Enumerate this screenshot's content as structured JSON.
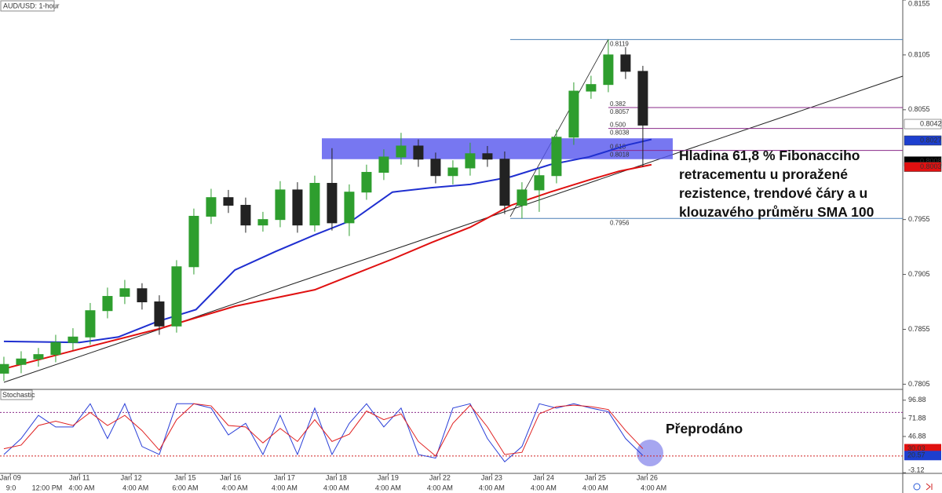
{
  "chart_data": [
    {
      "type": "candlestick",
      "title": "AUD/USD: 1-hour",
      "x": [
        0,
        8,
        16,
        24,
        32,
        40,
        48,
        56,
        64,
        72,
        80,
        88,
        96,
        104,
        112,
        120,
        128,
        136,
        144,
        152,
        160,
        168,
        176,
        184,
        192,
        200,
        208,
        216,
        224,
        232,
        240,
        248,
        256,
        264,
        272,
        280,
        288,
        296
      ],
      "open": [
        0.7815,
        0.7823,
        0.7828,
        0.7832,
        0.7843,
        0.7848,
        0.7872,
        0.7885,
        0.7892,
        0.788,
        0.7858,
        0.7912,
        0.7958,
        0.7975,
        0.7968,
        0.795,
        0.7955,
        0.7982,
        0.795,
        0.7988,
        0.7952,
        0.798,
        0.7998,
        0.8012,
        0.8022,
        0.801,
        0.7995,
        0.8002,
        0.8015,
        0.801,
        0.7968,
        0.7982,
        0.7995,
        0.803,
        0.8072,
        0.8078,
        0.8105,
        0.809
      ],
      "high": [
        0.783,
        0.7835,
        0.7838,
        0.785,
        0.7856,
        0.7879,
        0.7893,
        0.79,
        0.7897,
        0.7886,
        0.7918,
        0.7965,
        0.7983,
        0.7982,
        0.7975,
        0.7962,
        0.799,
        0.7989,
        0.7995,
        0.802,
        0.7987,
        0.8005,
        0.8019,
        0.8034,
        0.8028,
        0.8016,
        0.8009,
        0.8025,
        0.8022,
        0.8017,
        0.7989,
        0.8002,
        0.8037,
        0.808,
        0.8086,
        0.8119,
        0.8112,
        0.8095
      ],
      "low": [
        0.7808,
        0.7815,
        0.7821,
        0.7825,
        0.7836,
        0.7841,
        0.7865,
        0.7878,
        0.7873,
        0.785,
        0.7852,
        0.7905,
        0.7951,
        0.7961,
        0.7943,
        0.7944,
        0.7948,
        0.7943,
        0.7944,
        0.7945,
        0.794,
        0.7973,
        0.7991,
        0.8005,
        0.8003,
        0.7988,
        0.7987,
        0.7995,
        0.8003,
        0.796,
        0.7956,
        0.7962,
        0.7988,
        0.8023,
        0.8065,
        0.8071,
        0.8083,
        0.8003
      ],
      "close": [
        0.7823,
        0.7828,
        0.7832,
        0.7843,
        0.7848,
        0.7872,
        0.7885,
        0.7892,
        0.788,
        0.7858,
        0.7912,
        0.7958,
        0.7975,
        0.7968,
        0.795,
        0.7955,
        0.7982,
        0.795,
        0.7988,
        0.7952,
        0.798,
        0.7998,
        0.8012,
        0.8022,
        0.801,
        0.7995,
        0.8002,
        0.8015,
        0.801,
        0.7968,
        0.7982,
        0.7995,
        0.803,
        0.8072,
        0.8078,
        0.8105,
        0.809,
        0.8041
      ],
      "up_color": "#2e9e2e",
      "down_color": "#222222",
      "series": [
        {
          "color": "#1f2fd0",
          "x": [
            0,
            35,
            53,
            71,
            89,
            107,
            126,
            144,
            162,
            180,
            198,
            216,
            235,
            253,
            271,
            289,
            300
          ],
          "values": [
            0.7844,
            0.7843,
            0.7848,
            0.7862,
            0.7873,
            0.7909,
            0.7926,
            0.7941,
            0.7955,
            0.798,
            0.7984,
            0.7987,
            0.7994,
            0.8005,
            0.8012,
            0.8023,
            0.8028
          ]
        },
        {
          "color": "#e01010",
          "x": [
            0,
            35,
            71,
            107,
            144,
            162,
            180,
            198,
            216,
            235,
            253,
            271,
            285,
            300
          ],
          "values": [
            0.7819,
            0.7837,
            0.7855,
            0.7876,
            0.7891,
            0.7905,
            0.7919,
            0.7934,
            0.7948,
            0.7968,
            0.798,
            0.7991,
            0.7999,
            0.8005
          ]
        }
      ],
      "fibonacci": {
        "high": 0.8119,
        "low": 0.7956,
        "color": "#4a7fb5",
        "level_color": "#8a2a8a",
        "levels": [
          {
            "ratio": "0.382",
            "value": 0.8057
          },
          {
            "ratio": "0.500",
            "value": 0.8038
          },
          {
            "ratio": "0.618",
            "value": 0.8018
          }
        ]
      },
      "zone": {
        "top": 0.8029,
        "bottom": 0.801,
        "color": "#5555ee"
      },
      "annotation": "Hladina 61,8 % Fibonacciho retracementu u proražené rezistence, trendové čáry a u klouzavého průměru SMA 100",
      "price_tags": [
        {
          "value": 0.8042,
          "color": "#ffffff",
          "text_color": "#000000"
        },
        {
          "value": 0.8027,
          "color": "#1d3fcf",
          "text_color": "#ffffff"
        },
        {
          "value": 0.8008,
          "color": "#000000",
          "text_color": "#ffffff"
        },
        {
          "value": 0.8003,
          "color": "#e01010",
          "text_color": "#ffffff"
        }
      ],
      "xlim": [
        -1.8,
        416.4
      ],
      "ylim": [
        0.7801,
        0.8155
      ],
      "yticks": [
        0.7805,
        0.7855,
        0.7905,
        0.7955,
        0.8055,
        0.8105,
        0.8155
      ],
      "grid": false
    },
    {
      "type": "line",
      "title": "Stochastic",
      "x": [
        0,
        8,
        16,
        24,
        32,
        40,
        48,
        56,
        64,
        72,
        80,
        88,
        96,
        104,
        112,
        120,
        128,
        136,
        144,
        152,
        160,
        168,
        176,
        184,
        192,
        200,
        208,
        216,
        224,
        232,
        240,
        248,
        256,
        264,
        272,
        280,
        288,
        296
      ],
      "series": [
        {
          "color": "#2a3fd8",
          "values": [
            22,
            44,
            76,
            60,
            60,
            92,
            44,
            92,
            33,
            22,
            92,
            92,
            86,
            49,
            65,
            22,
            76,
            22,
            86,
            22,
            65,
            92,
            60,
            86,
            22,
            17,
            86,
            92,
            44,
            12,
            33,
            92,
            86,
            92,
            86,
            81,
            44,
            20.57
          ]
        },
        {
          "color": "#e02020",
          "values": [
            30,
            35,
            62,
            68,
            62,
            80,
            62,
            76,
            55,
            28,
            70,
            92,
            89,
            62,
            60,
            38,
            58,
            40,
            70,
            40,
            50,
            82,
            70,
            78,
            40,
            20,
            65,
            90,
            60,
            22,
            25,
            78,
            88,
            90,
            88,
            84,
            55,
            30.03
          ]
        }
      ],
      "levels": [
        80,
        20
      ],
      "annotation": "Přeprodáno",
      "value_tags": [
        {
          "value": 30.03,
          "color": "#e01010"
        },
        {
          "value": 20.57,
          "color": "#1d3fcf"
        }
      ],
      "xlim": [
        -1.8,
        416.4
      ],
      "ylim": [
        -4,
        110.7
      ],
      "yticks": [
        -3.12,
        46.88,
        71.88,
        96.88
      ],
      "xticks": [
        {
          "value": 3,
          "label": "Jan 09"
        },
        {
          "value": 35,
          "label": "Jan 11"
        },
        {
          "value": 59,
          "label": "Jan 12"
        },
        {
          "value": 84,
          "label": "Jan 15"
        },
        {
          "value": 105,
          "label": "Jan 16"
        },
        {
          "value": 130,
          "label": "Jan 17"
        },
        {
          "value": 154,
          "label": "Jan 18"
        },
        {
          "value": 178,
          "label": "Jan 19"
        },
        {
          "value": 202,
          "label": "Jan 22"
        },
        {
          "value": 226,
          "label": "Jan 23"
        },
        {
          "value": 250,
          "label": "Jan 24"
        },
        {
          "value": 274,
          "label": "Jan 25"
        },
        {
          "value": 298,
          "label": "Jan 26"
        }
      ],
      "time_ticks": [
        {
          "value": 1,
          "label": "9:0"
        },
        {
          "value": 20,
          "label": "12:00 PM"
        },
        {
          "value": 36,
          "label": "4:00 AM"
        },
        {
          "value": 61,
          "label": "4:00 AM"
        },
        {
          "value": 84,
          "label": "6:00 AM"
        },
        {
          "value": 107,
          "label": "4:00 AM"
        },
        {
          "value": 130,
          "label": "4:00 AM"
        },
        {
          "value": 154,
          "label": "4:00 AM"
        },
        {
          "value": 178,
          "label": "4:00 AM"
        },
        {
          "value": 202,
          "label": "4:00 AM"
        },
        {
          "value": 226,
          "label": "4:00 AM"
        },
        {
          "value": 250,
          "label": "4:00 AM"
        },
        {
          "value": 274,
          "label": "4:00 AM"
        },
        {
          "value": 301,
          "label": "4:00 AM"
        }
      ]
    }
  ]
}
